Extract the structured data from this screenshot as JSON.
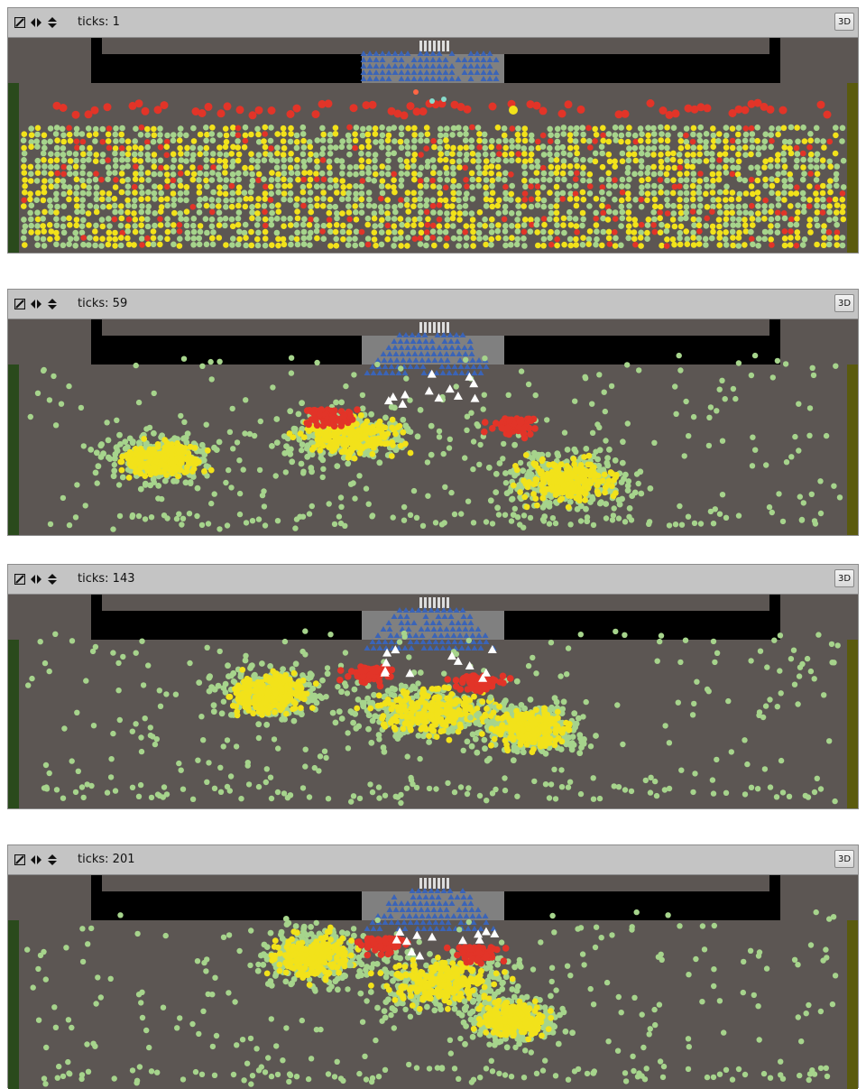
{
  "colors": {
    "ground": "#5c5653",
    "wall": "#000000",
    "stage_area": "#808080",
    "left_exit": "#2a4a1c",
    "right_exit": "#5a5a0e",
    "police": "#3a64b8",
    "rioter": "#e23428",
    "protester": "#f2e21a",
    "bystander": "#a6d48c",
    "injured": "#ffffff"
  },
  "controls": {
    "edit_icon": "edit-icon",
    "step_icon": "step-arrows-icon",
    "speed_icon": "speed-arrows-icon",
    "view3d_label": "3D"
  },
  "views": [
    {
      "ticks_label": "ticks: 1"
    },
    {
      "ticks_label": "ticks: 59"
    },
    {
      "ticks_label": "ticks: 143"
    },
    {
      "ticks_label": "ticks: 201"
    }
  ]
}
